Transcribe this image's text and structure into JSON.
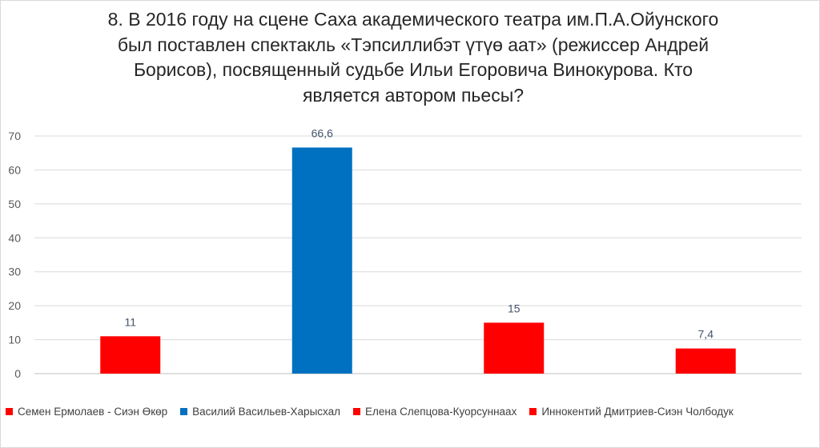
{
  "chart_data": {
    "type": "bar",
    "title_lines": [
      "8. В 2016 году на сцене Саха академического театра им.П.А.Ойунского",
      "был поставлен спектакль «Тэпсиллибэт үтүө аат» (режиссер Андрей",
      "Борисов), посвященный судьбе Ильи Егоровича Винокурова. Кто",
      "является автором пьесы?"
    ],
    "categories": [
      "Семен Ермолаев - Сиэн Өкөр",
      "Василий Васильев-Харысхал",
      "Елена Слепцова-Куорсуннаах",
      "Иннокентий Дмитриев-Сиэн Чолбодук"
    ],
    "values": [
      11,
      66.6,
      15,
      7.4
    ],
    "data_labels": [
      "11",
      "66,6",
      "15",
      "7,4"
    ],
    "colors": [
      "#ff0000",
      "#0070c0",
      "#ff0000",
      "#ff0000"
    ],
    "ylim": [
      0,
      70
    ],
    "yticks": [
      0,
      10,
      20,
      30,
      40,
      50,
      60,
      70
    ],
    "grid": true,
    "legend_position": "bottom"
  }
}
